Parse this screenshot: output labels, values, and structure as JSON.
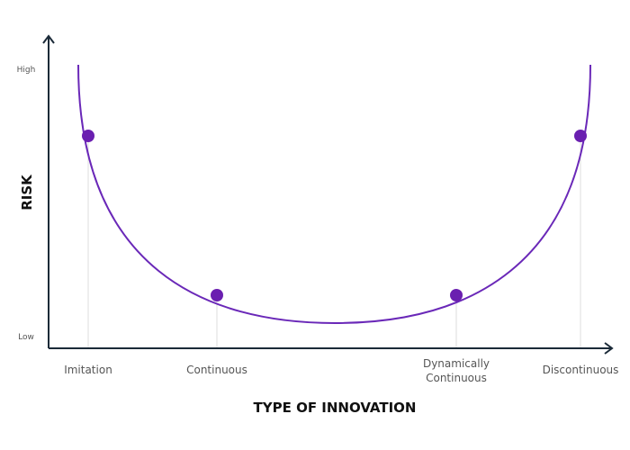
{
  "axes": {
    "y_label": "RISK",
    "x_label": "TYPE OF INNOVATION",
    "y_high": "High",
    "y_low": "Low"
  },
  "categories": [
    {
      "lines": [
        "Imitation"
      ]
    },
    {
      "lines": [
        "Continuous"
      ]
    },
    {
      "lines": [
        "Dynamically",
        "Continuous"
      ]
    },
    {
      "lines": [
        "Discontinuous"
      ]
    }
  ]
}
